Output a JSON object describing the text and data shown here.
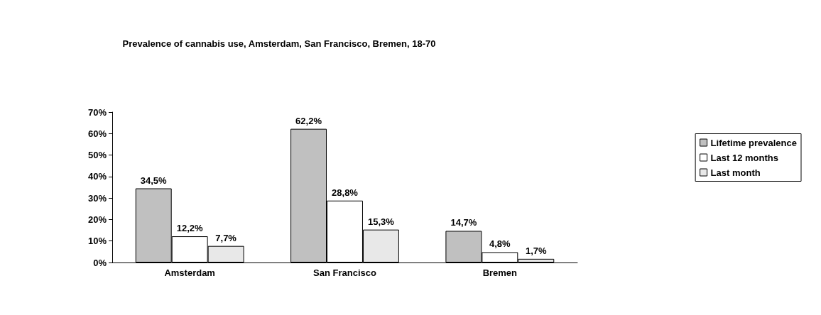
{
  "chart_data": {
    "type": "bar",
    "title": "Prevalence of cannabis use, Amsterdam, San Francisco, Bremen, 18-70",
    "categories": [
      "Amsterdam",
      "San Francisco",
      "Bremen"
    ],
    "series": [
      {
        "name": "Lifetime prevalence",
        "color": "#c0c0c0",
        "values": [
          34.5,
          62.2,
          14.7
        ],
        "value_labels": [
          "34,5%",
          "62,2%",
          "14,7%"
        ]
      },
      {
        "name": "Last 12 months",
        "color": "#ffffff",
        "values": [
          12.2,
          28.8,
          4.8
        ],
        "value_labels": [
          "12,2%",
          "28,8%",
          "4,8%"
        ]
      },
      {
        "name": "Last month",
        "color": "#e8e8e8",
        "values": [
          7.7,
          15.3,
          1.7
        ],
        "value_labels": [
          "7,7%",
          "15,3%",
          "1,7%"
        ]
      }
    ],
    "ylim": [
      0,
      70
    ],
    "yticks": [
      {
        "value": 0,
        "label": "0%"
      },
      {
        "value": 10,
        "label": "10%"
      },
      {
        "value": 20,
        "label": "20%"
      },
      {
        "value": 30,
        "label": "30%"
      },
      {
        "value": 40,
        "label": "40%"
      },
      {
        "value": 50,
        "label": "50%"
      },
      {
        "value": 60,
        "label": "60%"
      },
      {
        "value": 70,
        "label": "70%"
      }
    ],
    "grid": false,
    "legend": "right"
  }
}
